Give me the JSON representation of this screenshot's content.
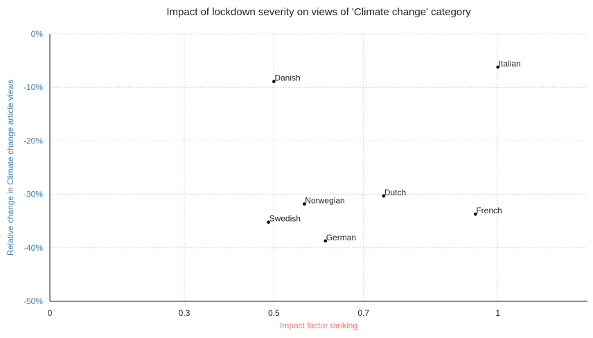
{
  "chart_data": {
    "type": "scatter",
    "title": "Impact of lockdown severity on views of 'Climate change' category",
    "xlabel": "Impact factor ranking",
    "ylabel": "Relative change in Climate change article views",
    "xlim": [
      0,
      1.2
    ],
    "ylim": [
      -0.5,
      0
    ],
    "x_ticks": [
      0,
      0.3,
      0.5,
      0.7,
      1
    ],
    "x_tick_labels": [
      "0",
      "0.3",
      "0.5",
      "0.7",
      "1"
    ],
    "y_ticks": [
      0,
      -0.1,
      -0.2,
      -0.3,
      -0.4,
      -0.5
    ],
    "y_tick_labels": [
      "0%",
      "-10%",
      "-20%",
      "-30%",
      "-40%",
      "-50%"
    ],
    "grid": true,
    "points": [
      {
        "label": "Italian",
        "x": 1.0,
        "y": -0.062
      },
      {
        "label": "Danish",
        "x": 0.5,
        "y": -0.089
      },
      {
        "label": "Dutch",
        "x": 0.745,
        "y": -0.303
      },
      {
        "label": "Norwegian",
        "x": 0.568,
        "y": -0.318
      },
      {
        "label": "French",
        "x": 0.95,
        "y": -0.337
      },
      {
        "label": "Swedish",
        "x": 0.488,
        "y": -0.352
      },
      {
        "label": "German",
        "x": 0.615,
        "y": -0.387
      }
    ],
    "colors": {
      "ylabel": "#3a7fb8",
      "yticks": "#3a7fb8",
      "xlabel": "#ee7a72",
      "point": "#000000"
    }
  }
}
